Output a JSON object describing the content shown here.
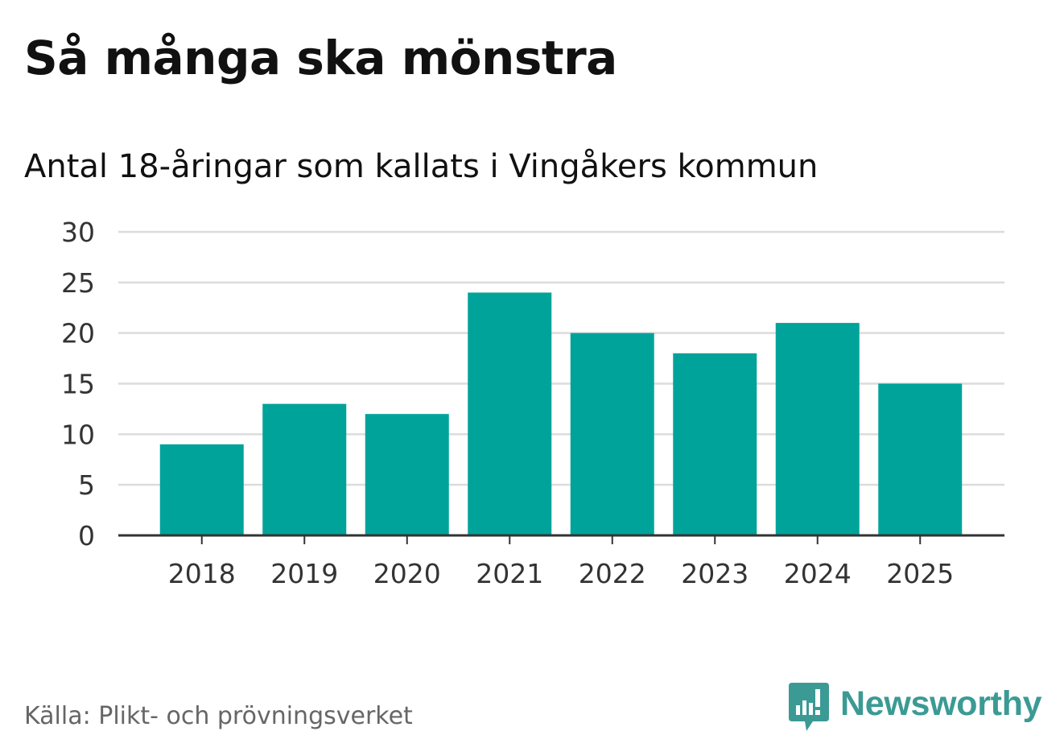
{
  "header": {
    "title": "Så många ska mönstra",
    "subtitle": "Antal 18-åringar som kallats i Vingåkers kommun"
  },
  "footer": {
    "source": "Källa: Plikt- och prövningsverket",
    "brand": "Newsworthy"
  },
  "colors": {
    "bar": "#00a39a",
    "grid": "#dcdcdc",
    "axis": "#333333",
    "brand": "#3b9a94"
  },
  "chart_data": {
    "type": "bar",
    "title": "Så många ska mönstra",
    "subtitle": "Antal 18-åringar som kallats i Vingåkers kommun",
    "xlabel": "",
    "ylabel": "",
    "categories": [
      "2018",
      "2019",
      "2020",
      "2021",
      "2022",
      "2023",
      "2024",
      "2025"
    ],
    "values": [
      9,
      13,
      12,
      24,
      20,
      18,
      21,
      15
    ],
    "ylim": [
      0,
      30
    ],
    "yticks": [
      0,
      5,
      10,
      15,
      20,
      25,
      30
    ],
    "grid": true,
    "legend": "none"
  }
}
